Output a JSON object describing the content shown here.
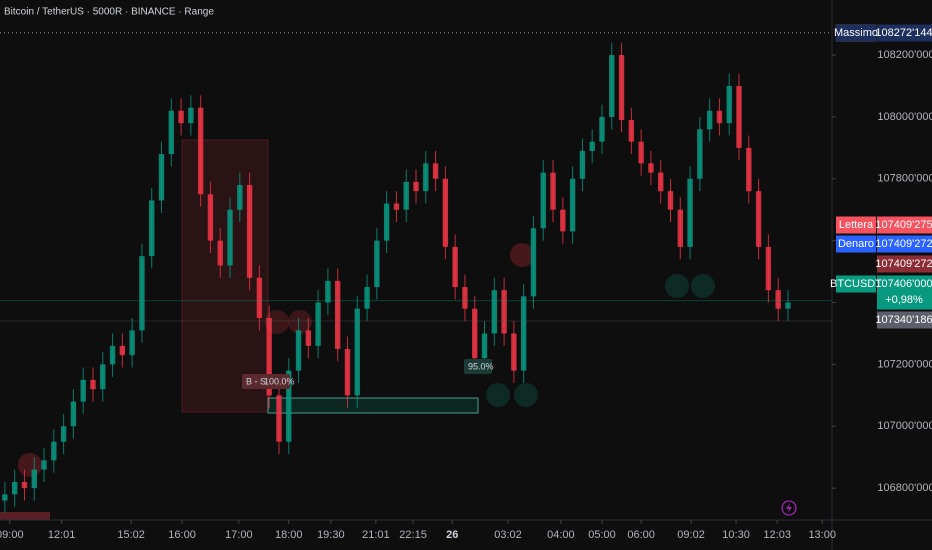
{
  "chart_data": {
    "type": "candlestick",
    "title": "Bitcoin / TetherUS · 5000R · BINANCE · Range",
    "up_color": "#089981",
    "down_color": "#f23645",
    "grid": false,
    "open": [
      106760,
      106780,
      106820,
      106800,
      106860,
      106890,
      106950,
      107000,
      107080,
      107150,
      107120,
      107200,
      107260,
      107230,
      107310,
      107550,
      107730,
      107880,
      108020,
      107980,
      108030,
      107750,
      107600,
      107520,
      107700,
      107780,
      107480,
      107350,
      107100,
      106950,
      107180,
      107310,
      107260,
      107400,
      107470,
      107250,
      107100,
      107380,
      107450,
      107600,
      107720,
      107700,
      107790,
      107760,
      107850,
      107800,
      107580,
      107450,
      107380,
      107220,
      107300,
      107440,
      107300,
      107180,
      107420,
      107640,
      107820,
      107700,
      107630,
      107800,
      107890,
      107920,
      108000,
      108200,
      107990,
      107920,
      107850,
      107820,
      107760,
      107700,
      107580,
      107800,
      107960,
      108020,
      107980,
      108100,
      107900,
      107760,
      107580,
      107440,
      107380
    ],
    "high": [
      106820,
      106860,
      106860,
      106900,
      106930,
      106990,
      107040,
      107120,
      107190,
      107190,
      107240,
      107300,
      107300,
      107350,
      107590,
      107770,
      107920,
      108060,
      108060,
      108070,
      108070,
      107790,
      107640,
      107740,
      107820,
      107820,
      107520,
      107390,
      107140,
      107220,
      107350,
      107350,
      107440,
      107510,
      107510,
      107290,
      107420,
      107490,
      107640,
      107760,
      107760,
      107830,
      107830,
      107890,
      107890,
      107840,
      107620,
      107490,
      107420,
      107340,
      107480,
      107480,
      107340,
      107460,
      107680,
      107860,
      107860,
      107740,
      107840,
      107930,
      107960,
      108040,
      108240,
      108240,
      108030,
      107960,
      107890,
      107860,
      107800,
      107740,
      107840,
      108000,
      108060,
      108060,
      108140,
      108140,
      107940,
      107800,
      107620,
      107480,
      107440
    ],
    "low": [
      106720,
      106740,
      106760,
      106760,
      106820,
      106850,
      106910,
      106960,
      107040,
      107080,
      107080,
      107160,
      107190,
      107190,
      107270,
      107510,
      107690,
      107840,
      107940,
      107940,
      107710,
      107560,
      107480,
      107480,
      107660,
      107440,
      107310,
      107060,
      106910,
      106910,
      107140,
      107220,
      107220,
      107360,
      107210,
      107060,
      107060,
      107340,
      107410,
      107560,
      107660,
      107660,
      107720,
      107720,
      107760,
      107540,
      107410,
      107340,
      107180,
      107180,
      107260,
      107260,
      107140,
      107140,
      107380,
      107600,
      107660,
      107590,
      107590,
      107760,
      107850,
      107880,
      107960,
      107950,
      107880,
      107810,
      107780,
      107720,
      107660,
      107540,
      107540,
      107760,
      107920,
      107940,
      107940,
      107860,
      107720,
      107540,
      107400,
      107340,
      107340
    ],
    "close": [
      106780,
      106820,
      106800,
      106860,
      106890,
      106950,
      107000,
      107080,
      107150,
      107120,
      107200,
      107260,
      107230,
      107310,
      107550,
      107730,
      107880,
      108020,
      107980,
      108030,
      107750,
      107600,
      107520,
      107700,
      107780,
      107480,
      107350,
      107100,
      106950,
      107180,
      107310,
      107260,
      107400,
      107470,
      107250,
      107100,
      107380,
      107450,
      107600,
      107720,
      107700,
      107790,
      107760,
      107850,
      107800,
      107580,
      107450,
      107380,
      107220,
      107300,
      107440,
      107300,
      107180,
      107420,
      107640,
      107820,
      107700,
      107630,
      107800,
      107890,
      107920,
      108000,
      108200,
      107990,
      107920,
      107850,
      107820,
      107760,
      107700,
      107580,
      107800,
      107960,
      108020,
      107980,
      108100,
      107900,
      107760,
      107580,
      107440,
      107380,
      107400
    ],
    "xlim": [
      0,
      85
    ],
    "xticks": [
      {
        "value": 1,
        "label": "09:00"
      },
      {
        "value": 6.3,
        "label": "12:01"
      },
      {
        "value": 13.4,
        "label": "15:02"
      },
      {
        "value": 18.6,
        "label": "16:00"
      },
      {
        "value": 24.4,
        "label": "17:00"
      },
      {
        "value": 29.5,
        "label": "18:00"
      },
      {
        "value": 33.8,
        "label": "19:30"
      },
      {
        "value": 38.4,
        "label": "21:01"
      },
      {
        "value": 42.2,
        "label": "22:15"
      },
      {
        "value": 46.2,
        "label": "26"
      },
      {
        "value": 51.9,
        "label": "03:02"
      },
      {
        "value": 57.3,
        "label": "04:00"
      },
      {
        "value": 61.5,
        "label": "05:00"
      },
      {
        "value": 65.5,
        "label": "06:00"
      },
      {
        "value": 70.6,
        "label": "09:02"
      },
      {
        "value": 75.2,
        "label": "10:30"
      },
      {
        "value": 79.4,
        "label": "12:03"
      },
      {
        "value": 84,
        "label": "13:00"
      }
    ],
    "ylim": [
      106697,
      108378
    ],
    "yticks": [
      {
        "value": 106800,
        "label": "106800'000"
      },
      {
        "value": 107000,
        "label": "107000'000"
      },
      {
        "value": 107200,
        "label": "107200'000"
      },
      {
        "value": 107400,
        "label": "107400'000"
      },
      {
        "value": 107600,
        "label": "107600'000"
      },
      {
        "value": 107800,
        "label": "107800'000"
      },
      {
        "value": 108000,
        "label": "108000'000"
      },
      {
        "value": 108200,
        "label": "108200'000"
      }
    ],
    "price_labels": [
      {
        "name": "Massimo",
        "value": 108272.144,
        "label": "108272'144",
        "color": "#1c2f5e"
      },
      {
        "name": "Lettera",
        "value": 107409.275,
        "label": "107409'275",
        "color": "#f7525f"
      },
      {
        "name": "Denaro",
        "value": 107409.272,
        "label": "107409'272",
        "color": "#2962ff"
      },
      {
        "value": 107409.272,
        "label": "107409'272",
        "color": "#8c2c35"
      },
      {
        "name": "BTCUSDT",
        "value": 107406,
        "label": "107406'000",
        "change": "+0,98%",
        "color": "#089981"
      },
      {
        "value": 107340.186,
        "label": "107340'186",
        "color": "#5d606b"
      }
    ],
    "annotations": [
      {
        "text": "B - S",
        "percent": "100.0%"
      },
      {
        "percent": "95.0%"
      }
    ]
  }
}
